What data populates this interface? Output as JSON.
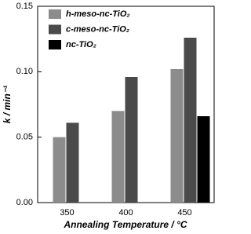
{
  "chart_data": {
    "type": "bar",
    "xlabel": "Annealing Temperature / °C",
    "ylabel": "k / min⁻¹",
    "categories": [
      "350",
      "400",
      "450"
    ],
    "series": [
      {
        "name": "h-meso-nc-TiO₂",
        "color": "#8c8c8c",
        "values": [
          0.05,
          0.07,
          0.102
        ]
      },
      {
        "name": "c-meso-nc-TiO₂",
        "color": "#4a4a4a",
        "values": [
          0.061,
          0.096,
          0.126
        ]
      },
      {
        "name": "nc-TiO₂",
        "color": "#000000",
        "values": [
          null,
          null,
          0.066
        ]
      }
    ],
    "ylim": [
      0,
      0.15
    ],
    "yticks": [
      {
        "value": 0,
        "label": "0.00"
      },
      0.05,
      {
        "value": 0.1,
        "label": "0.10"
      },
      0.15
    ],
    "legend": "upper-left"
  }
}
